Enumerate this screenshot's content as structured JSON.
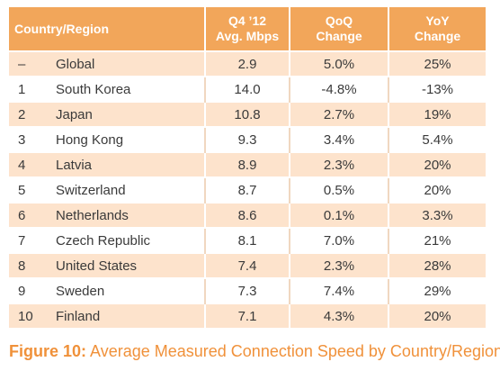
{
  "table": {
    "headers": {
      "country": "Country/Region",
      "speed_line1": "Q4 ’12",
      "speed_line2": "Avg. Mbps",
      "qoq_line1": "QoQ",
      "qoq_line2": "Change",
      "yoy_line1": "YoY",
      "yoy_line2": "Change"
    },
    "rows": [
      {
        "rank": "–",
        "country": "Global",
        "speed": "2.9",
        "qoq": "5.0%",
        "yoy": "25%"
      },
      {
        "rank": "1",
        "country": "South Korea",
        "speed": "14.0",
        "qoq": "-4.8%",
        "yoy": "-13%"
      },
      {
        "rank": "2",
        "country": "Japan",
        "speed": "10.8",
        "qoq": "2.7%",
        "yoy": "19%"
      },
      {
        "rank": "3",
        "country": "Hong Kong",
        "speed": "9.3",
        "qoq": "3.4%",
        "yoy": "5.4%"
      },
      {
        "rank": "4",
        "country": "Latvia",
        "speed": "8.9",
        "qoq": "2.3%",
        "yoy": "20%"
      },
      {
        "rank": "5",
        "country": "Switzerland",
        "speed": "8.7",
        "qoq": "0.5%",
        "yoy": "20%"
      },
      {
        "rank": "6",
        "country": "Netherlands",
        "speed": "8.6",
        "qoq": "0.1%",
        "yoy": "3.3%"
      },
      {
        "rank": "7",
        "country": "Czech Republic",
        "speed": "8.1",
        "qoq": "7.0%",
        "yoy": "21%"
      },
      {
        "rank": "8",
        "country": "United States",
        "speed": "7.4",
        "qoq": "2.3%",
        "yoy": "28%"
      },
      {
        "rank": "9",
        "country": "Sweden",
        "speed": "7.3",
        "qoq": "7.4%",
        "yoy": "29%"
      },
      {
        "rank": "10",
        "country": "Finland",
        "speed": "7.1",
        "qoq": "4.3%",
        "yoy": "20%"
      }
    ]
  },
  "caption": {
    "label": "Figure 10:",
    "text": " Average Measured Connection Speed by Country/Region"
  },
  "colors": {
    "header_bg": "#f2a65a",
    "stripe_bg": "#fde3cc",
    "caption": "#f0913a"
  }
}
